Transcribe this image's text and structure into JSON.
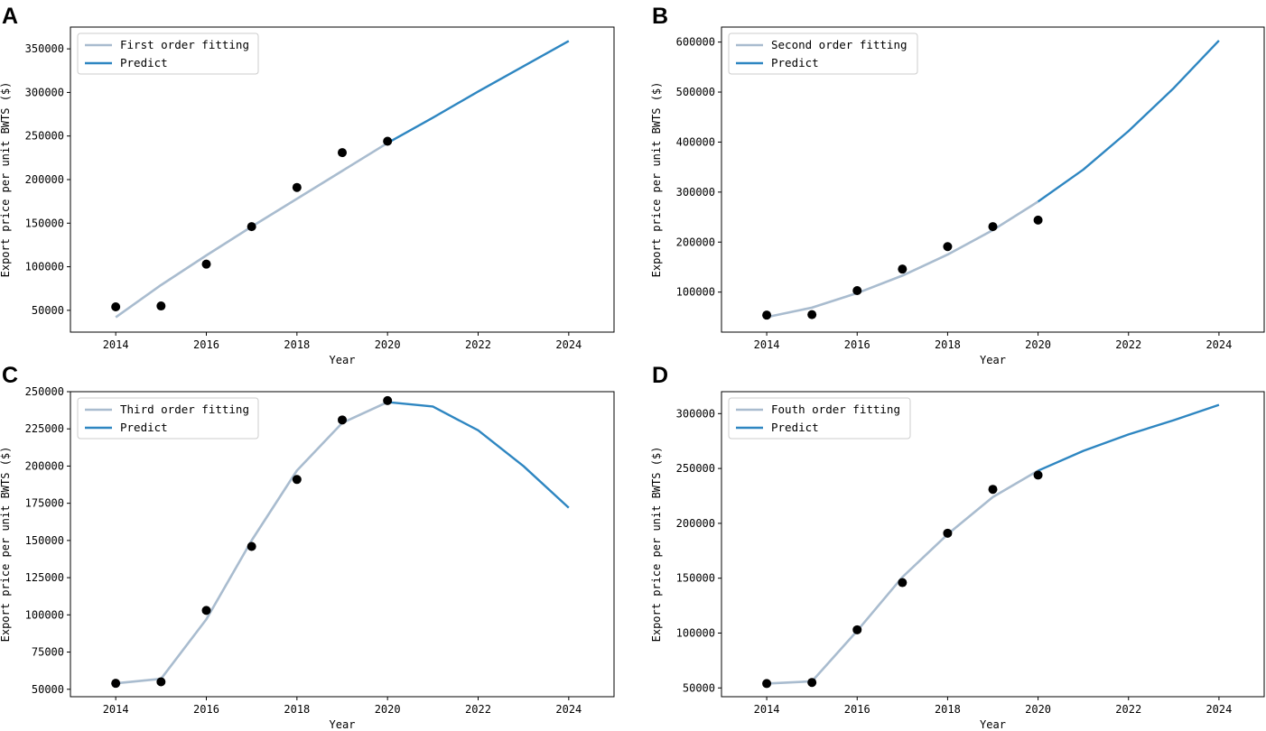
{
  "figure": {
    "x_axis_label": "Year",
    "y_axis_label": "Export price per unit BWTS ($)"
  },
  "colors": {
    "fit": "#a9bccf",
    "predict": "#2e86c1",
    "point": "#000000"
  },
  "chart_data": [
    {
      "panel": "A",
      "type": "line",
      "fit_label": "First order fitting",
      "predict_label": "Predict",
      "xlabel": "Year",
      "ylabel": "Export price per unit BWTS ($)",
      "xlim": [
        2013,
        2025
      ],
      "ylim": [
        25000,
        375000
      ],
      "xticks": [
        2014,
        2016,
        2018,
        2020,
        2022,
        2024
      ],
      "yticks": [
        50000,
        100000,
        150000,
        200000,
        250000,
        300000,
        350000
      ],
      "observed": {
        "x": [
          2014,
          2015,
          2016,
          2017,
          2018,
          2019,
          2020
        ],
        "y": [
          54000,
          55000,
          103000,
          146000,
          191000,
          231000,
          244000
        ]
      },
      "fit": {
        "x": [
          2014,
          2015,
          2016,
          2017,
          2018,
          2019,
          2020
        ],
        "y": [
          42000,
          79000,
          113000,
          146000,
          178000,
          210000,
          242000
        ]
      },
      "predict": {
        "x": [
          2020,
          2021,
          2022,
          2023,
          2024
        ],
        "y": [
          242000,
          271000,
          301000,
          330000,
          359000
        ]
      },
      "legend_position": "upper-left"
    },
    {
      "panel": "B",
      "type": "line",
      "fit_label": "Second order fitting",
      "predict_label": "Predict",
      "xlabel": "Year",
      "ylabel": "Export price per unit BWTS ($)",
      "xlim": [
        2013,
        2025
      ],
      "ylim": [
        20000,
        630000
      ],
      "xticks": [
        2014,
        2016,
        2018,
        2020,
        2022,
        2024
      ],
      "yticks": [
        100000,
        200000,
        300000,
        400000,
        500000,
        600000
      ],
      "observed": {
        "x": [
          2014,
          2015,
          2016,
          2017,
          2018,
          2019,
          2020
        ],
        "y": [
          54000,
          55000,
          103000,
          146000,
          191000,
          231000,
          244000
        ]
      },
      "fit": {
        "x": [
          2014,
          2015,
          2016,
          2017,
          2018,
          2019,
          2020
        ],
        "y": [
          50000,
          69000,
          98000,
          133000,
          175000,
          224000,
          281000
        ]
      },
      "predict": {
        "x": [
          2020,
          2021,
          2022,
          2023,
          2024
        ],
        "y": [
          281000,
          345000,
          422000,
          508000,
          603000
        ]
      },
      "legend_position": "upper-left"
    },
    {
      "panel": "C",
      "type": "line",
      "fit_label": "Third order fitting",
      "predict_label": "Predict",
      "xlabel": "Year",
      "ylabel": "Export price per unit BWTS ($)",
      "xlim": [
        2013,
        2025
      ],
      "ylim": [
        45000,
        250000
      ],
      "xticks": [
        2014,
        2016,
        2018,
        2020,
        2022,
        2024
      ],
      "yticks": [
        50000,
        75000,
        100000,
        125000,
        150000,
        175000,
        200000,
        225000,
        250000
      ],
      "observed": {
        "x": [
          2014,
          2015,
          2016,
          2017,
          2018,
          2019,
          2020
        ],
        "y": [
          54000,
          55000,
          103000,
          146000,
          191000,
          231000,
          244000
        ]
      },
      "fit": {
        "x": [
          2014,
          2015,
          2016,
          2017,
          2018,
          2019,
          2020
        ],
        "y": [
          54000,
          57000,
          97000,
          150000,
          197000,
          229000,
          243000
        ]
      },
      "predict": {
        "x": [
          2020,
          2021,
          2022,
          2023,
          2024
        ],
        "y": [
          243000,
          240000,
          224000,
          200000,
          172000
        ]
      },
      "legend_position": "upper-left"
    },
    {
      "panel": "D",
      "type": "line",
      "fit_label": "Fouth order fitting",
      "predict_label": "Predict",
      "xlabel": "Year",
      "ylabel": "Export price per unit BWTS ($)",
      "xlim": [
        2013,
        2025
      ],
      "ylim": [
        42000,
        320000
      ],
      "xticks": [
        2014,
        2016,
        2018,
        2020,
        2022,
        2024
      ],
      "yticks": [
        50000,
        100000,
        150000,
        200000,
        250000,
        300000
      ],
      "observed": {
        "x": [
          2014,
          2015,
          2016,
          2017,
          2018,
          2019,
          2020
        ],
        "y": [
          54000,
          55000,
          103000,
          146000,
          191000,
          231000,
          244000
        ]
      },
      "fit": {
        "x": [
          2014,
          2015,
          2016,
          2017,
          2018,
          2019,
          2020
        ],
        "y": [
          54000,
          56000,
          102000,
          151000,
          190000,
          224000,
          248000
        ]
      },
      "predict": {
        "x": [
          2020,
          2021,
          2022,
          2023,
          2024
        ],
        "y": [
          248000,
          266000,
          281000,
          294000,
          308000
        ]
      },
      "legend_position": "upper-left"
    }
  ]
}
